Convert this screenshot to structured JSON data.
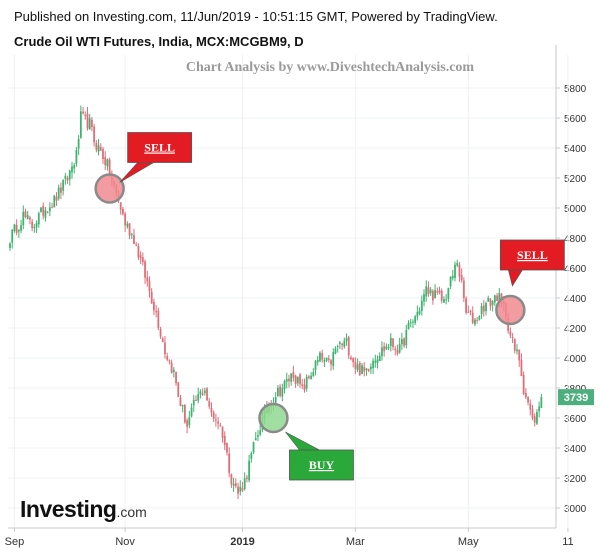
{
  "header": {
    "line1": "Published on Investing.com, 11/Jun/2019 - 10:51:15 GMT, Powered by TradingView.",
    "line2": "Crude Oil WTI Futures, India, MCX:MCGBM9, D"
  },
  "watermark": "Chart Analysis by www.DiveshtechAnalysis.com",
  "logo": {
    "main": "Investing",
    "suffix": ".com"
  },
  "colors": {
    "up": "#3bb46e",
    "down": "#e06d78",
    "grid": "#eef0f3",
    "axis": "#c6cad0",
    "sell_box": "#e31b23",
    "buy_box": "#2aa83a",
    "sell_circle": "#f08a8f",
    "buy_circle": "#8fd98f",
    "last_price_bg": "#4caf7d"
  },
  "chart_data": {
    "type": "candlestick",
    "title": "Crude Oil WTI Futures, India, MCX:MCGBM9, D",
    "ylim": [
      2900,
      5900
    ],
    "y_ticks": [
      3000,
      3200,
      3400,
      3600,
      3800,
      4000,
      4200,
      4400,
      4600,
      4800,
      5000,
      5200,
      5400,
      5600,
      5800
    ],
    "x_ticks": [
      {
        "label": "Sep",
        "bold": false
      },
      {
        "label": "Nov",
        "bold": false
      },
      {
        "label": "2019",
        "bold": true
      },
      {
        "label": "Mar",
        "bold": false
      },
      {
        "label": "May",
        "bold": false
      },
      {
        "label": "11",
        "bold": false
      }
    ],
    "x_tick_bars": [
      2,
      52,
      105,
      156,
      207,
      252
    ],
    "last_price": 3739,
    "close_path": [
      [
        0,
        4800
      ],
      [
        6,
        4950
      ],
      [
        10,
        4880
      ],
      [
        16,
        5000
      ],
      [
        20,
        5050
      ],
      [
        26,
        5200
      ],
      [
        30,
        5350
      ],
      [
        32,
        5600
      ],
      [
        36,
        5560
      ],
      [
        38,
        5450
      ],
      [
        42,
        5350
      ],
      [
        44,
        5280
      ],
      [
        46,
        5180
      ],
      [
        50,
        5000
      ],
      [
        52,
        4900
      ],
      [
        56,
        4800
      ],
      [
        60,
        4600
      ],
      [
        66,
        4300
      ],
      [
        70,
        4050
      ],
      [
        74,
        3900
      ],
      [
        76,
        3750
      ],
      [
        80,
        3550
      ],
      [
        84,
        3720
      ],
      [
        88,
        3800
      ],
      [
        90,
        3650
      ],
      [
        94,
        3580
      ],
      [
        96,
        3500
      ],
      [
        98,
        3350
      ],
      [
        100,
        3200
      ],
      [
        103,
        3100
      ],
      [
        106,
        3180
      ],
      [
        110,
        3400
      ],
      [
        113,
        3550
      ],
      [
        116,
        3650
      ],
      [
        120,
        3760
      ],
      [
        124,
        3820
      ],
      [
        128,
        3900
      ],
      [
        132,
        3780
      ],
      [
        136,
        3900
      ],
      [
        140,
        4000
      ],
      [
        144,
        3950
      ],
      [
        148,
        4080
      ],
      [
        152,
        4100
      ],
      [
        156,
        3950
      ],
      [
        160,
        3900
      ],
      [
        164,
        4000
      ],
      [
        168,
        4050
      ],
      [
        172,
        4100
      ],
      [
        176,
        4050
      ],
      [
        180,
        4200
      ],
      [
        184,
        4300
      ],
      [
        188,
        4450
      ],
      [
        192,
        4420
      ],
      [
        196,
        4380
      ],
      [
        200,
        4550
      ],
      [
        202,
        4650
      ],
      [
        204,
        4480
      ],
      [
        206,
        4300
      ],
      [
        210,
        4250
      ],
      [
        214,
        4350
      ],
      [
        218,
        4380
      ],
      [
        220,
        4420
      ],
      [
        224,
        4300
      ],
      [
        226,
        4150
      ],
      [
        228,
        4050
      ],
      [
        230,
        4000
      ],
      [
        232,
        3800
      ],
      [
        234,
        3700
      ],
      [
        236,
        3580
      ],
      [
        238,
        3620
      ],
      [
        240,
        3739
      ]
    ],
    "annotations": [
      {
        "type": "SELL",
        "bar": 45,
        "price": 5130
      },
      {
        "type": "BUY",
        "bar": 119,
        "price": 3600
      },
      {
        "type": "SELL",
        "bar": 226,
        "price": 4320
      }
    ]
  }
}
